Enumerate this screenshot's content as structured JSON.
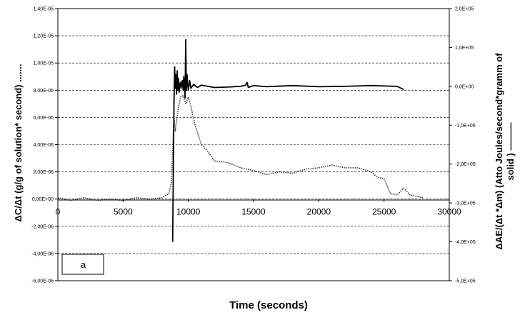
{
  "chart_data": {
    "type": "line",
    "panel_label": "a",
    "xlabel": "Time (seconds)",
    "ylabel_left": "ΔC/Δt (g/g of solution* second) .......",
    "ylabel_right_line1": "ΔAE/(Δt *Δm) (Atto Joules/second*gramm of",
    "ylabel_right_line2": "solid )  ———",
    "x_ticks": [
      0,
      5000,
      10000,
      15000,
      20000,
      25000,
      30000
    ],
    "x_tick_labels": [
      "0",
      "5000",
      "10000",
      "15000",
      "20000",
      "25000",
      "30000"
    ],
    "xlim": [
      0,
      30000
    ],
    "left_axis": {
      "ylim": [
        -6e-06,
        1.4e-05
      ],
      "ticks": [
        1.4e-05,
        1.2e-05,
        1e-05,
        8e-06,
        6e-06,
        4e-06,
        2e-06,
        0,
        -2e-06,
        -4e-06,
        -6e-06
      ],
      "tick_labels": [
        "1,40E-05",
        "1,20E-05",
        "1,00E-05",
        "8,00E-06",
        "6,00E-06",
        "4,00E-06",
        "2,00E-06",
        "0,00E+00",
        "-2,00E-06",
        "-4,00E-06",
        "-6,00E-06"
      ]
    },
    "right_axis": {
      "ylim": [
        -500000,
        200000
      ],
      "ticks": [
        200000,
        100000,
        0,
        -100000,
        -200000,
        -300000,
        -400000,
        -500000
      ],
      "tick_labels": [
        "2,0E+05",
        "1,0E+05",
        "0,0E+00",
        "-1,0E+05",
        "-2,0E+05",
        "-3,0E+05",
        "-4,0E+05",
        "-5,0E+05"
      ]
    },
    "grid": "horizontal",
    "series": [
      {
        "axis": "left",
        "style": "dotted",
        "color": "#333333",
        "x": [
          0,
          1000,
          2000,
          3000,
          4000,
          5000,
          6000,
          7000,
          8000,
          8500,
          8700,
          8800,
          8900,
          9000,
          9200,
          9400,
          9600,
          9800,
          10000,
          10200,
          10500,
          11000,
          11500,
          12000,
          13000,
          14000,
          15000,
          16000,
          17000,
          18000,
          19000,
          20000,
          21000,
          22000,
          23000,
          24000,
          24500,
          25000,
          25500,
          26000,
          26500,
          27000,
          27500,
          28000
        ],
        "y": [
          1e-07,
          -1e-07,
          1e-07,
          -1e-07,
          0.0,
          -1e-07,
          1e-07,
          0.0,
          1e-07,
          4e-07,
          1.2e-06,
          3.5e-06,
          6e-06,
          5e-06,
          6.5e-06,
          7.5e-06,
          7.6e-06,
          7e-06,
          7.5e-06,
          6.8e-06,
          5.5e-06,
          4e-06,
          3.5e-06,
          2.8e-06,
          2.7e-06,
          2.3e-06,
          2.1e-06,
          1.8e-06,
          2e-06,
          1.9e-06,
          2.2e-06,
          2.3e-06,
          2.5e-06,
          2.3e-06,
          2.3e-06,
          2e-06,
          1.6e-06,
          1.5e-06,
          4e-07,
          3e-07,
          8e-07,
          3e-07,
          2e-07,
          1e-07
        ]
      },
      {
        "axis": "right",
        "style": "solid",
        "color": "#000000",
        "x": [
          8800,
          8900,
          8950,
          9000,
          9050,
          9100,
          9150,
          9200,
          9250,
          9300,
          9350,
          9400,
          9450,
          9500,
          9550,
          9600,
          9650,
          9700,
          9750,
          9800,
          9850,
          9900,
          9950,
          10000,
          10100,
          10200,
          10400,
          10700,
          11000,
          12000,
          13000,
          14000,
          14400,
          14500,
          14600,
          15000,
          16000,
          18000,
          20000,
          22000,
          24000,
          26000,
          26500
        ],
        "y": [
          -400000,
          -40000,
          50000,
          -5000,
          30000,
          -20000,
          40000,
          -10000,
          20000,
          -15000,
          5000,
          10000,
          -5000,
          10000,
          15000,
          -10000,
          25000,
          5000,
          -30000,
          120000,
          -10000,
          30000,
          5000,
          -10000,
          15000,
          -5000,
          5000,
          -3000,
          3000,
          -3000,
          -2000,
          0,
          3000,
          10000,
          -3000,
          2000,
          -1000,
          2000,
          -1000,
          0,
          2000,
          0,
          -8000
        ]
      }
    ]
  }
}
